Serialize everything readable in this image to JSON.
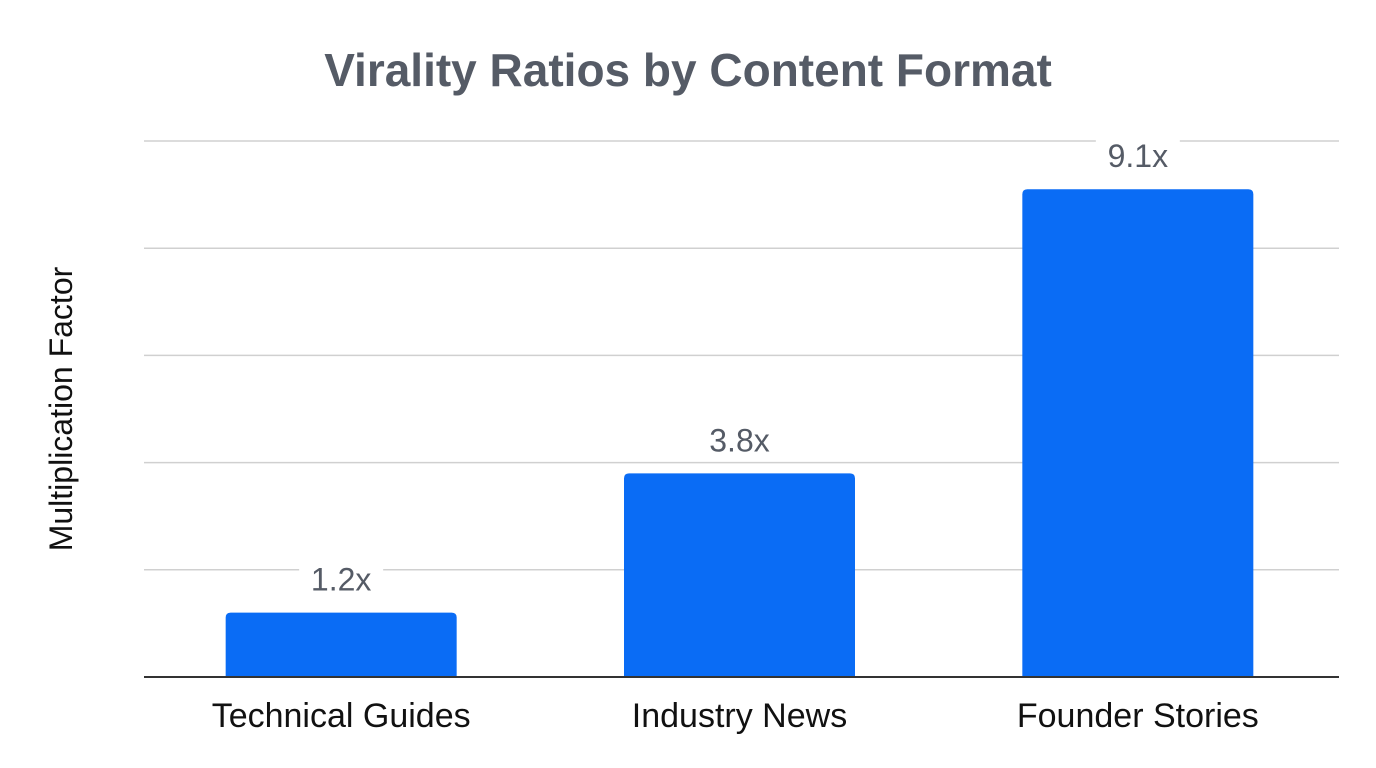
{
  "chart_data": {
    "type": "bar",
    "title": "Virality Ratios by Content Format",
    "xlabel": "",
    "ylabel": "Multiplication Factor",
    "categories": [
      "Technical Guides",
      "Industry News",
      "Founder Stories"
    ],
    "values": [
      1.2,
      3.8,
      9.1
    ],
    "data_labels": [
      "1.2x",
      "3.8x",
      "9.1x"
    ],
    "ylim": [
      0,
      10
    ],
    "grid_step": 2,
    "grid": true,
    "y_tick_labels_shown": false,
    "legend": "none",
    "colors": {
      "bar": "#0a6cf5",
      "grid": "#d0d0d0",
      "axis": "#333333",
      "title": "#555b66"
    }
  }
}
